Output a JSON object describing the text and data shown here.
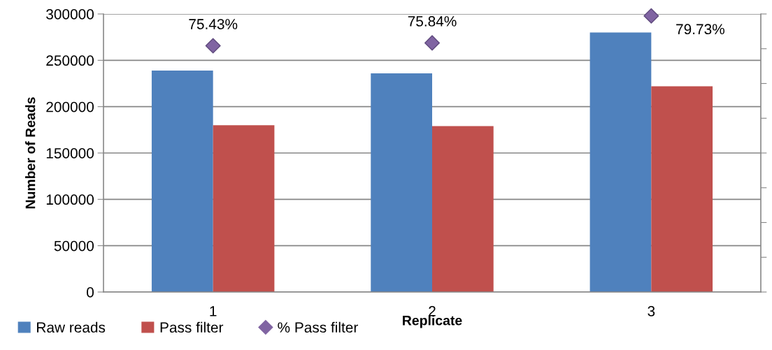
{
  "chart_data": {
    "type": "bar",
    "xlabel": "Replicate",
    "ylabel": "Number of Reads",
    "categories": [
      "1",
      "2",
      "3"
    ],
    "series": [
      {
        "name": "Raw reads",
        "color": "#4f81bd",
        "values": [
          239000,
          236000,
          280000
        ]
      },
      {
        "name": "Pass filter",
        "color": "#c0504d",
        "values": [
          180000,
          179000,
          222000
        ]
      },
      {
        "name": "% Pass filter",
        "type": "scatter",
        "axis": "y2",
        "color": "#8064a2",
        "marker": "diamond",
        "values": [
          75.43,
          75.84,
          79.73
        ],
        "value_labels": [
          "75.43%",
          "75.84%",
          "79.73%"
        ]
      }
    ],
    "ylim": [
      0,
      300000
    ],
    "yticks": [
      0,
      50000,
      100000,
      150000,
      200000,
      250000,
      300000
    ],
    "y2lim": [
      40,
      80
    ],
    "y2ticks": [
      {
        "value": 40,
        "label": null
      },
      {
        "value": 45,
        "label": null
      },
      {
        "value": 50,
        "label": null
      },
      {
        "value": 55,
        "label": null
      },
      {
        "value": 60,
        "label": null
      },
      {
        "value": 65,
        "label": null
      },
      {
        "value": 70,
        "label": null
      },
      {
        "value": 75,
        "label": null
      },
      {
        "value": 80,
        "label": null
      }
    ],
    "grid": "y",
    "legend": "bottom left"
  }
}
